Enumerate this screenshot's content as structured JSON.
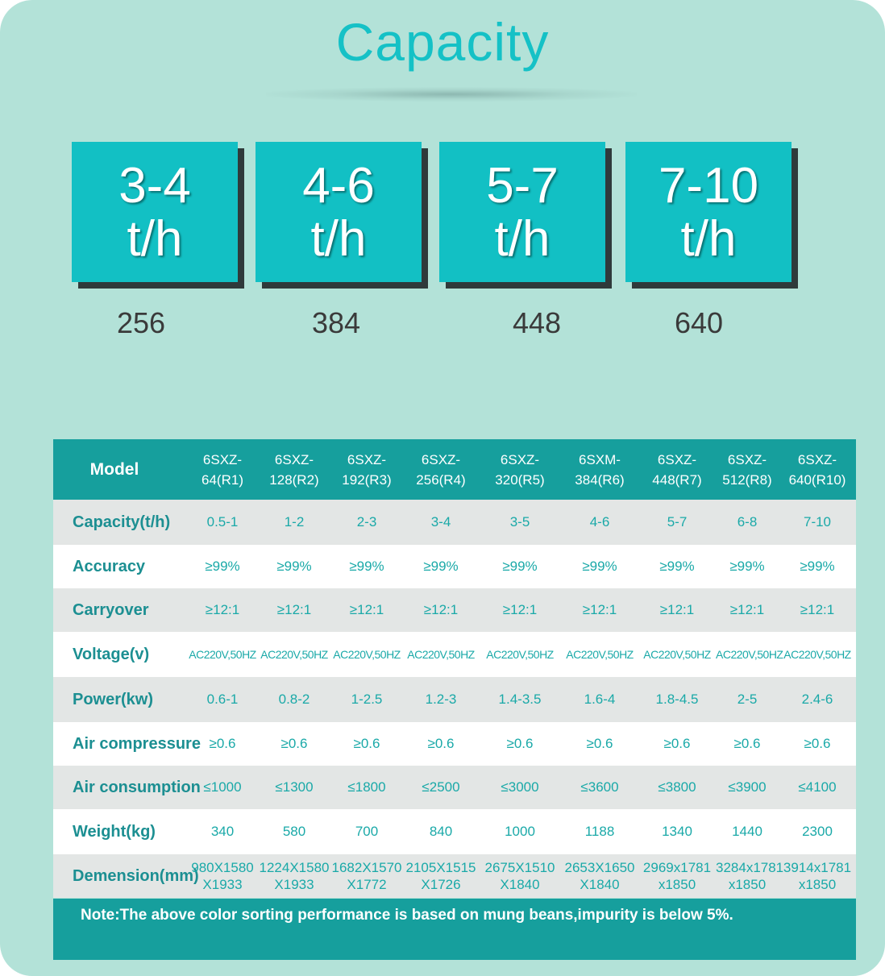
{
  "title": "Capacity",
  "capacity_cards": [
    {
      "range": "3-4",
      "unit": "t/h",
      "channels": "256"
    },
    {
      "range": "4-6",
      "unit": "t/h",
      "channels": "384"
    },
    {
      "range": "5-7",
      "unit": "t/h",
      "channels": "448"
    },
    {
      "range": "7-10",
      "unit": "t/h",
      "channels": "640"
    }
  ],
  "table": {
    "model_label": "Model",
    "models": [
      [
        "6SXZ-",
        "64(R1)"
      ],
      [
        "6SXZ-",
        "128(R2)"
      ],
      [
        "6SXZ-",
        "192(R3)"
      ],
      [
        "6SXZ-",
        "256(R4)"
      ],
      [
        "6SXZ-",
        "320(R5)"
      ],
      [
        "6SXM-",
        "384(R6)"
      ],
      [
        "6SXZ-",
        "448(R7)"
      ],
      [
        "6SXZ-",
        "512(R8)"
      ],
      [
        "6SXZ-",
        "640(R10)"
      ]
    ],
    "rows": [
      {
        "label": "Capacity(t/h)",
        "values": [
          "0.5-1",
          "1-2",
          "2-3",
          "3-4",
          "3-5",
          "4-6",
          "5-7",
          "6-8",
          "7-10"
        ]
      },
      {
        "label": "Accuracy",
        "values": [
          "≥99%",
          "≥99%",
          "≥99%",
          "≥99%",
          "≥99%",
          "≥99%",
          "≥99%",
          "≥99%",
          "≥99%"
        ]
      },
      {
        "label": "Carryover",
        "values": [
          "≥12:1",
          "≥12:1",
          "≥12:1",
          "≥12:1",
          "≥12:1",
          "≥12:1",
          "≥12:1",
          "≥12:1",
          "≥12:1"
        ]
      },
      {
        "label": "Voltage(v)",
        "values": [
          "AC220V,50HZ",
          "AC220V,50HZ",
          "AC220V,50HZ",
          "AC220V,50HZ",
          "AC220V,50HZ",
          "AC220V,50HZ",
          "AC220V,50HZ",
          "AC220V,50HZ",
          "AC220V,50HZ"
        ]
      },
      {
        "label": "Power(kw)",
        "values": [
          "0.6-1",
          "0.8-2",
          "1-2.5",
          "1.2-3",
          "1.4-3.5",
          "1.6-4",
          "1.8-4.5",
          "2-5",
          "2.4-6"
        ]
      },
      {
        "label": "Air compressure",
        "values": [
          "≥0.6",
          "≥0.6",
          "≥0.6",
          "≥0.6",
          "≥0.6",
          "≥0.6",
          "≥0.6",
          "≥0.6",
          "≥0.6"
        ]
      },
      {
        "label": "Air consumption",
        "values": [
          "≤1000",
          "≤1300",
          "≤1800",
          "≤2500",
          "≤3000",
          "≤3600",
          "≤3800",
          "≤3900",
          "≤4100"
        ]
      },
      {
        "label": "Weight(kg)",
        "values": [
          "340",
          "580",
          "700",
          "840",
          "1000",
          "1188",
          "1340",
          "1440",
          "2300"
        ]
      },
      {
        "label": "Demension(mm)",
        "values": [
          [
            "980X1580",
            "X1933"
          ],
          [
            "1224X1580",
            "X1933"
          ],
          [
            "1682X1570",
            "X1772"
          ],
          [
            "2105X1515",
            "X1726"
          ],
          [
            "2675X1510",
            "X1840"
          ],
          [
            "2653X1650",
            "X1840"
          ],
          [
            "2969x1781",
            "x1850"
          ],
          [
            "3284x1781",
            "x1850"
          ],
          [
            "3914x1781",
            "x1850"
          ]
        ]
      }
    ]
  },
  "note": "Note:The above color sorting performance is based on mung beans,impurity is below 5%.",
  "colors": {
    "panel_bg": "#b3e2d8",
    "accent": "#12c0c4",
    "table_header": "#169f9d",
    "row_alt": "#e3e6e5"
  }
}
